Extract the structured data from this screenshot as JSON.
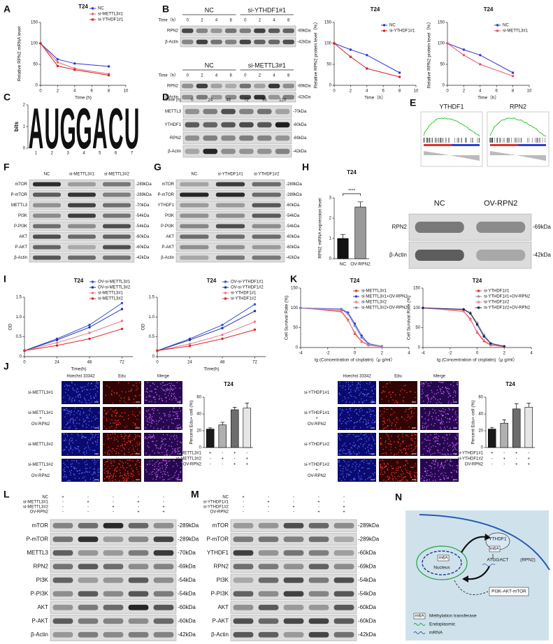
{
  "panel_labels": [
    "A",
    "B",
    "C",
    "D",
    "E",
    "F",
    "G",
    "H",
    "I",
    "K",
    "J",
    "L",
    "M",
    "N"
  ],
  "chart_data": [
    {
      "type": "line",
      "title": "T24",
      "xlabel": "Time (h)",
      "ylabel": "Relative RPN2 mRNA level",
      "x": [
        0,
        2,
        4,
        8
      ],
      "xlim": [
        0,
        10
      ],
      "xticks": [
        0,
        2,
        4,
        6,
        8,
        10
      ],
      "ylim": [
        0,
        150
      ],
      "yticks": [
        0,
        50,
        100,
        150
      ],
      "legend": "upper right",
      "series": [
        {
          "name": "NC",
          "color": "#3434d8",
          "values": [
            100,
            62,
            52,
            45
          ]
        },
        {
          "name": "si-METTL3#1",
          "color": "#e8607a",
          "values": [
            100,
            55,
            40,
            27
          ]
        },
        {
          "name": "si-YTHDF1#1",
          "color": "#d82020",
          "values": [
            100,
            46,
            37,
            24
          ]
        }
      ]
    },
    {
      "type": "line",
      "title": "T24",
      "xlabel": "Time（h）",
      "ylabel": "Relative RPN2 protein level（%）",
      "x": [
        0,
        2,
        4,
        8
      ],
      "xlim": [
        0,
        10
      ],
      "xticks": [
        0,
        2,
        4,
        6,
        8,
        10
      ],
      "ylim": [
        0,
        150
      ],
      "yticks": [
        0,
        50,
        100,
        150
      ],
      "legend": "upper right",
      "series": [
        {
          "name": "NC",
          "color": "#3434d8",
          "values": [
            100,
            85,
            72,
            30
          ]
        },
        {
          "name": "si-YTHDF1#1",
          "color": "#d82020",
          "values": [
            100,
            68,
            40,
            20
          ]
        }
      ]
    },
    {
      "type": "line",
      "title": "T24",
      "xlabel": "Time（h）",
      "ylabel": "Relative RPN2 protein level（%）",
      "x": [
        0,
        2,
        4,
        8
      ],
      "xlim": [
        0,
        10
      ],
      "xticks": [
        0,
        2,
        4,
        6,
        8,
        10
      ],
      "ylim": [
        0,
        150
      ],
      "yticks": [
        0,
        50,
        100,
        150
      ],
      "legend": "upper right",
      "series": [
        {
          "name": "NC",
          "color": "#3434d8",
          "values": [
            100,
            85,
            72,
            30
          ]
        },
        {
          "name": "si-METTL3#1",
          "color": "#e8506a",
          "values": [
            100,
            72,
            50,
            22
          ]
        }
      ]
    },
    {
      "type": "bar",
      "title": "T24",
      "ylabel": "RPN2 mRNA expression level",
      "categories": [
        "NC",
        "OV-RPN2"
      ],
      "values": [
        1.0,
        2.55
      ],
      "errors": [
        0.2,
        0.25
      ],
      "colors": [
        "#111111",
        "#9a9a9a"
      ],
      "ylim": [
        0,
        3
      ],
      "yticks": [
        0,
        1,
        2,
        3
      ],
      "annotation": "****"
    },
    {
      "type": "line",
      "title": "T24",
      "xlabel": "Time(h)",
      "ylabel": "OD",
      "x": [
        0,
        24,
        48,
        72
      ],
      "xlim": [
        0,
        80
      ],
      "xticks": [
        0,
        24,
        48,
        72
      ],
      "ylim": [
        0,
        1.5
      ],
      "yticks": [
        0,
        0.5,
        {
          "value": 1,
          "label": "1.0"
        },
        1.5
      ],
      "legend": "upper right",
      "series": [
        {
          "name": "OV-si-METTL3#1",
          "color": "#3050e0",
          "values": [
            0.15,
            0.45,
            0.8,
            1.35
          ]
        },
        {
          "name": "OV-si-METTL3#2",
          "color": "#2030a0",
          "values": [
            0.15,
            0.42,
            0.74,
            1.2
          ]
        },
        {
          "name": "si-METTL3#1",
          "color": "#f07888",
          "values": [
            0.15,
            0.35,
            0.6,
            0.9
          ]
        },
        {
          "name": "si-METTL3#2",
          "color": "#d82828",
          "values": [
            0.15,
            0.28,
            0.45,
            0.7
          ]
        }
      ]
    },
    {
      "type": "line",
      "title": "T24",
      "xlabel": "Time(h)",
      "ylabel": "OD",
      "x": [
        0,
        24,
        48,
        72
      ],
      "xlim": [
        0,
        80
      ],
      "xticks": [
        0,
        24,
        48,
        72
      ],
      "ylim": [
        0,
        1.5
      ],
      "yticks": [
        0,
        0.5,
        {
          "value": 1,
          "label": "1.0"
        },
        1.5
      ],
      "legend": "upper right",
      "series": [
        {
          "name": "OV-si-YTHDF1#1",
          "color": "#3050e0",
          "values": [
            0.15,
            0.45,
            0.8,
            1.32
          ]
        },
        {
          "name": "OV-si-YTHDF1#2",
          "color": "#2030a0",
          "values": [
            0.15,
            0.42,
            0.72,
            1.15
          ]
        },
        {
          "name": "si-YTHDF1#1",
          "color": "#f07888",
          "values": [
            0.15,
            0.32,
            0.55,
            0.88
          ]
        },
        {
          "name": "si-YTHDF1#2",
          "color": "#d82828",
          "values": [
            0.15,
            0.27,
            0.45,
            0.68
          ]
        }
      ]
    },
    {
      "type": "line",
      "title": "T24",
      "xlabel": "lg (Concentration of cisplatin)（μ g/ml）",
      "ylabel": "Cell Survival Rate (%)",
      "x": [
        -4,
        -1,
        -0.5,
        0,
        0.5,
        1,
        2
      ],
      "xlim": [
        -4,
        4
      ],
      "xticks": [
        -4,
        -2,
        0,
        2,
        4
      ],
      "ylim": [
        0,
        150
      ],
      "yticks": [
        0,
        50,
        100,
        150
      ],
      "legend": "upper right",
      "series": [
        {
          "name": "si-METTL3#1",
          "color": "#e03030",
          "values": [
            100,
            92,
            70,
            35,
            15,
            6,
            2
          ]
        },
        {
          "name": "si-METTL3#1+OV-RPN2",
          "color": "#2040d0",
          "values": [
            100,
            97,
            88,
            60,
            30,
            10,
            3
          ]
        },
        {
          "name": "si-METTL3#2",
          "color": "#f08090",
          "values": [
            100,
            90,
            68,
            38,
            16,
            7,
            2
          ]
        },
        {
          "name": "si-METTL3#2+OV-RPN2",
          "color": "#8080c0",
          "values": [
            100,
            96,
            85,
            55,
            25,
            9,
            3
          ]
        }
      ]
    },
    {
      "type": "line",
      "title": "T24",
      "xlabel": "lg (Concentration of cisplatin)（μ g/ml）",
      "ylabel": "Cell Survival Rate (%)",
      "x": [
        -4,
        -1,
        -0.5,
        0,
        0.5,
        1,
        2
      ],
      "xlim": [
        -4,
        4
      ],
      "xticks": [
        -4,
        -2,
        0,
        2,
        4
      ],
      "ylim": [
        0,
        150
      ],
      "yticks": [
        0,
        50,
        100,
        150
      ],
      "legend": "upper right",
      "series": [
        {
          "name": "si-YTHDF1#1",
          "color": "#e03030",
          "values": [
            100,
            92,
            72,
            38,
            16,
            6,
            2
          ]
        },
        {
          "name": "si-YTHDF1#1+OV-RPN2",
          "color": "#9090a8",
          "values": [
            100,
            97,
            88,
            62,
            32,
            11,
            3
          ]
        },
        {
          "name": "si-YTHDF1#2",
          "color": "#f08090",
          "values": [
            100,
            91,
            70,
            40,
            18,
            7,
            2
          ]
        },
        {
          "name": "si-YTHDF1#2+OV-RPN2",
          "color": "#202060",
          "values": [
            100,
            96,
            86,
            58,
            28,
            10,
            3
          ]
        }
      ]
    },
    {
      "type": "bar",
      "title": "T24",
      "ylabel": "Percent Edu+ cell (%)",
      "values": [
        22,
        27,
        45,
        47
      ],
      "errors": [
        1.5,
        3,
        3,
        6
      ],
      "colors": [
        "#1a1a1a",
        "#b0b0b0",
        "#6d6d6d",
        "#e6e6e6"
      ],
      "ylim": [
        0,
        60
      ],
      "yticks": [
        0,
        20,
        40,
        60
      ],
      "conditions": [
        {
          "name": "si-METTL3#1",
          "signs": [
            "+",
            "-",
            "+",
            "-"
          ]
        },
        {
          "name": "si-METTL3#2",
          "signs": [
            "-",
            "+",
            "-",
            "+"
          ]
        },
        {
          "name": "OV-RPN2",
          "signs": [
            "-",
            "-",
            "+",
            "+"
          ]
        }
      ]
    },
    {
      "type": "bar",
      "title": "T24",
      "ylabel": "Percent Edu+ cell (%)",
      "values": [
        22,
        29,
        46,
        48
      ],
      "errors": [
        2,
        4,
        6,
        5
      ],
      "colors": [
        "#1a1a1a",
        "#b0b0b0",
        "#6d6d6d",
        "#e6e6e6"
      ],
      "ylim": [
        0,
        60
      ],
      "yticks": [
        0,
        20,
        40,
        60
      ],
      "conditions": [
        {
          "name": "si-YTHDF1#1",
          "signs": [
            "+",
            "-",
            "+",
            "-"
          ]
        },
        {
          "name": "si-YTHDF1#2",
          "signs": [
            "-",
            "+",
            "-",
            "+"
          ]
        },
        {
          "name": "OV-RPN2",
          "signs": [
            "-",
            "-",
            "+",
            "+"
          ]
        }
      ]
    }
  ],
  "blots": [
    {
      "header": [
        "NC",
        "si-YTHDF1#1"
      ],
      "lane_title": "Time（h）",
      "lane_labels": [
        "0",
        "2",
        "4",
        "8",
        "0",
        "2",
        "4",
        "8"
      ],
      "rows": [
        {
          "protein": "RPN2",
          "size": "-69kDa"
        },
        {
          "protein": "β-Actin",
          "size": "-42kDa"
        }
      ]
    },
    {
      "header": [
        "NC",
        "si-METTL3#1"
      ],
      "lane_title": "Time（h）",
      "lane_labels": [
        "0",
        "2",
        "4",
        "8",
        "0",
        "2",
        "4",
        "8"
      ],
      "rows": [
        {
          "protein": "RPN2",
          "size": "-69kDa"
        },
        {
          "protein": "β-Actin",
          "size": "-42kDa"
        }
      ]
    },
    {
      "lane_title": "Time (h)",
      "lane_labels": [
        "0",
        "24",
        "48",
        "72",
        "96",
        "120"
      ],
      "rows": [
        {
          "protein": "METTL3",
          "size": "-70kDa"
        },
        {
          "protein": "YTHDF1",
          "size": "-60kDa"
        },
        {
          "protein": "RPN2",
          "size": "-69kDa"
        },
        {
          "protein": "β-Actin",
          "size": "-42kDa"
        }
      ]
    },
    {
      "lane_labels": [
        "NC",
        "si-METTL3#1",
        "si-METTL3#2"
      ],
      "rows": [
        {
          "protein": "mTOR",
          "size": "-289kDa"
        },
        {
          "protein": "P-mTOR",
          "size": "-289kDa"
        },
        {
          "protein": "METTL3",
          "size": "-70kDa"
        },
        {
          "protein": "PI3K",
          "size": "-54kDa"
        },
        {
          "protein": "P-PI3K",
          "size": "-54kDa"
        },
        {
          "protein": "AKT",
          "size": "-60kDa"
        },
        {
          "protein": "P-AKT",
          "size": "-60kDa"
        },
        {
          "protein": "β-Actin",
          "size": "-42kDa"
        }
      ]
    },
    {
      "lane_labels": [
        "NC",
        "si-YTHDF1#1",
        "si-YTHDF1#2"
      ],
      "rows": [
        {
          "protein": "mTOR",
          "size": "-289kDa"
        },
        {
          "protein": "P-mTOR",
          "size": "-289kDa"
        },
        {
          "protein": "YTHDF1",
          "size": "-60kDa"
        },
        {
          "protein": "PI3K",
          "size": "-54kDa"
        },
        {
          "protein": "P-PI3K",
          "size": "-54kDa"
        },
        {
          "protein": "AKT",
          "size": "-60kDa"
        },
        {
          "protein": "P-AKT",
          "size": "-60kDa"
        },
        {
          "protein": "β-Actin",
          "size": "-42kDa"
        }
      ]
    },
    {
      "lane_labels": [
        "NC",
        "OV-RPN2"
      ],
      "rows": [
        {
          "protein": "RPN2",
          "size": "-69kDa"
        },
        {
          "protein": "β-Actin",
          "size": "-42kDa"
        }
      ]
    },
    {
      "conditions": [
        {
          "name": "NC",
          "signs": [
            "+",
            "-",
            "-",
            "-",
            "-"
          ]
        },
        {
          "name": "si-METTL3#1",
          "signs": [
            "-",
            "+",
            "-",
            "+",
            "-"
          ]
        },
        {
          "name": "si-METTL3#2",
          "signs": [
            "-",
            "-",
            "+",
            "-",
            "+"
          ]
        },
        {
          "name": "OV-RPN2",
          "signs": [
            "-",
            "-",
            "-",
            "+",
            "+"
          ]
        }
      ],
      "rows": [
        {
          "protein": "mTOR",
          "size": "-289kDa"
        },
        {
          "protein": "P-mTOR",
          "size": "-289kDa"
        },
        {
          "protein": "METTL3",
          "size": "-70kDa"
        },
        {
          "protein": "RPN2",
          "size": "-69kDa"
        },
        {
          "protein": "PI3K",
          "size": "-54kDa"
        },
        {
          "protein": "P-PI3K",
          "size": "-54kDa"
        },
        {
          "protein": "AKT",
          "size": "-60kDa"
        },
        {
          "protein": "P-AKT",
          "size": "-60kDa"
        },
        {
          "protein": "β-Actin",
          "size": "-42kDa"
        }
      ]
    },
    {
      "conditions": [
        {
          "name": "NC",
          "signs": [
            "+",
            "-",
            "-",
            "-",
            "-"
          ]
        },
        {
          "name": "si-YTHDF1#1",
          "signs": [
            "-",
            "+",
            "-",
            "+",
            "-"
          ]
        },
        {
          "name": "si-YTHDF1#2",
          "signs": [
            "-",
            "-",
            "+",
            "-",
            "+"
          ]
        },
        {
          "name": "OV-RPN2",
          "signs": [
            "-",
            "-",
            "-",
            "+",
            "+"
          ]
        }
      ],
      "rows": [
        {
          "protein": "mTOR",
          "size": "-289kDa"
        },
        {
          "protein": "P-mTOR",
          "size": "-289kDa"
        },
        {
          "protein": "YTHDF1",
          "size": "-60kDa"
        },
        {
          "protein": "RPN2",
          "size": "-69kDa"
        },
        {
          "protein": "PI3K",
          "size": "-54kDa"
        },
        {
          "protein": "P-PI3K",
          "size": "-54kDa"
        },
        {
          "protein": "AKT",
          "size": "-60kDa"
        },
        {
          "protein": "P-AKT",
          "size": "-60kDa"
        },
        {
          "protein": "β-Actin",
          "size": "-42kDa"
        }
      ]
    }
  ],
  "logo": {
    "letters": [
      "A",
      "U",
      "G",
      "G",
      "A",
      "C",
      "U"
    ],
    "colors": {
      "A": "#22a022",
      "U": "#d82020",
      "G": "#f0a000",
      "C": "#2030d0"
    },
    "ylabel": "bits",
    "xticks": [
      "1",
      "2",
      "3",
      "4",
      "5",
      "6",
      "7"
    ],
    "ylim": [
      0,
      2
    ],
    "yticks": [
      0,
      1,
      2
    ]
  },
  "gsea": {
    "titles": [
      "YTHDF1",
      "RPN2"
    ]
  },
  "edu_panels": [
    {
      "columns": [
        "Hoechst 33342",
        "Edu",
        "Merge"
      ],
      "rows": [
        [
          "si-METTL3#1"
        ],
        [
          "si-METTL3#1",
          "+",
          "OV-RPN2"
        ],
        [
          "si-METTL3#2"
        ],
        [
          "si-METTL3#2",
          "+",
          "OV-RPN2"
        ]
      ]
    },
    {
      "columns": [
        "Hoechst 33342",
        "Edu",
        "Merge"
      ],
      "rows": [
        [
          "si-YTHDF1#1"
        ],
        [
          "si-YTHDF1#1",
          "+",
          "OV-RPN2"
        ],
        [
          "si-YTHDF1#2"
        ],
        [
          "si-YTHDF1#2",
          "+",
          "OV-RPN2"
        ]
      ]
    }
  ],
  "diagram": {
    "labels": [
      "YTHDF1",
      "m6A",
      "Nucleus",
      "m6A",
      "ATGGACT",
      "(RPN2)",
      "PI3K-AKT-mTOR"
    ],
    "legend": [
      {
        "symbol": "m6A",
        "text": "Methylation transferase"
      },
      {
        "text": "Endoplasmic"
      },
      {
        "text": "mRNA"
      }
    ]
  }
}
